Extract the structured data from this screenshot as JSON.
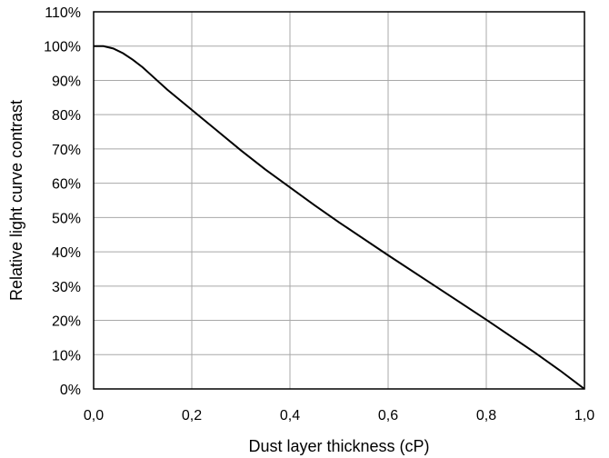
{
  "chart_data": {
    "type": "line",
    "title": "",
    "xlabel": "Dust layer thickness (cP)",
    "ylabel": "Relative light curve contrast",
    "xlim": [
      0,
      1
    ],
    "ylim": [
      0,
      110
    ],
    "grid": true,
    "x_ticks": [
      0,
      0.2,
      0.4,
      0.6,
      0.8,
      1.0
    ],
    "x_tick_labels": [
      "0,0",
      "0,2",
      "0,4",
      "0,6",
      "0,8",
      "1,0"
    ],
    "y_ticks": [
      0,
      10,
      20,
      30,
      40,
      50,
      60,
      70,
      80,
      90,
      100,
      110
    ],
    "y_tick_labels": [
      "0%",
      "10%",
      "20%",
      "30%",
      "40%",
      "50%",
      "60%",
      "70%",
      "80%",
      "90%",
      "100%",
      "110%"
    ],
    "series": [
      {
        "x": [
          0,
          0.02,
          0.04,
          0.06,
          0.08,
          0.1,
          0.12,
          0.15,
          0.2,
          0.25,
          0.3,
          0.35,
          0.4,
          0.45,
          0.5,
          0.6,
          0.7,
          0.8,
          0.9,
          0.95,
          1.0
        ],
        "y": [
          100,
          100,
          99.3,
          97.9,
          96.0,
          93.8,
          91.2,
          87.3,
          81.4,
          75.5,
          69.6,
          64.0,
          58.8,
          53.6,
          48.6,
          39.0,
          29.6,
          20.2,
          10.5,
          5.4,
          0
        ]
      }
    ]
  }
}
